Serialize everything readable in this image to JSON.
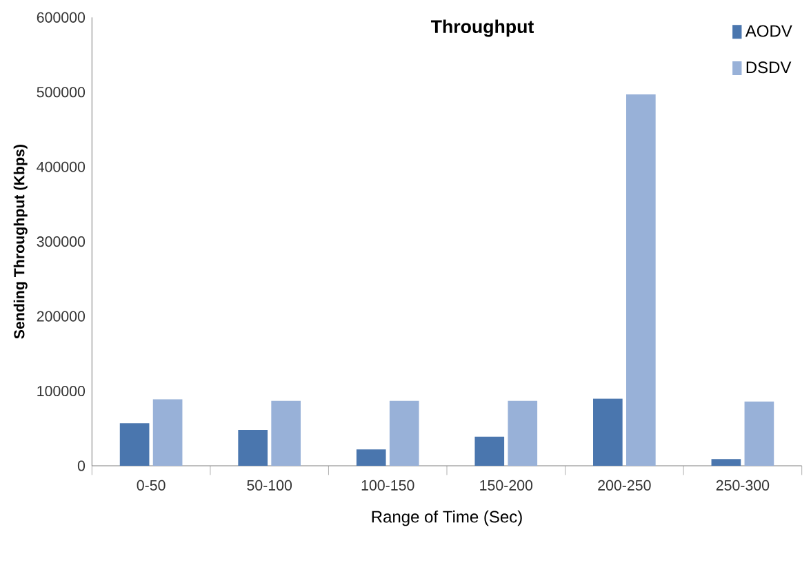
{
  "chart_data": {
    "type": "bar",
    "title": "Throughput",
    "xlabel": "Range of Time (Sec)",
    "ylabel": "Sending Throughput (Kbps)",
    "categories": [
      "0-50",
      "50-100",
      "100-150",
      "150-200",
      "200-250",
      "250-300"
    ],
    "series": [
      {
        "name": "AODV",
        "color": "#4a76ae",
        "values": [
          57000,
          48000,
          22000,
          39000,
          90000,
          9000
        ]
      },
      {
        "name": "DSDV",
        "color": "#98b1d8",
        "values": [
          89000,
          87000,
          87000,
          87000,
          497000,
          86000
        ]
      }
    ],
    "ylim": [
      0,
      600000
    ],
    "yticks": [
      0,
      100000,
      200000,
      300000,
      400000,
      500000,
      600000
    ],
    "legend": "top right",
    "grid": false
  }
}
